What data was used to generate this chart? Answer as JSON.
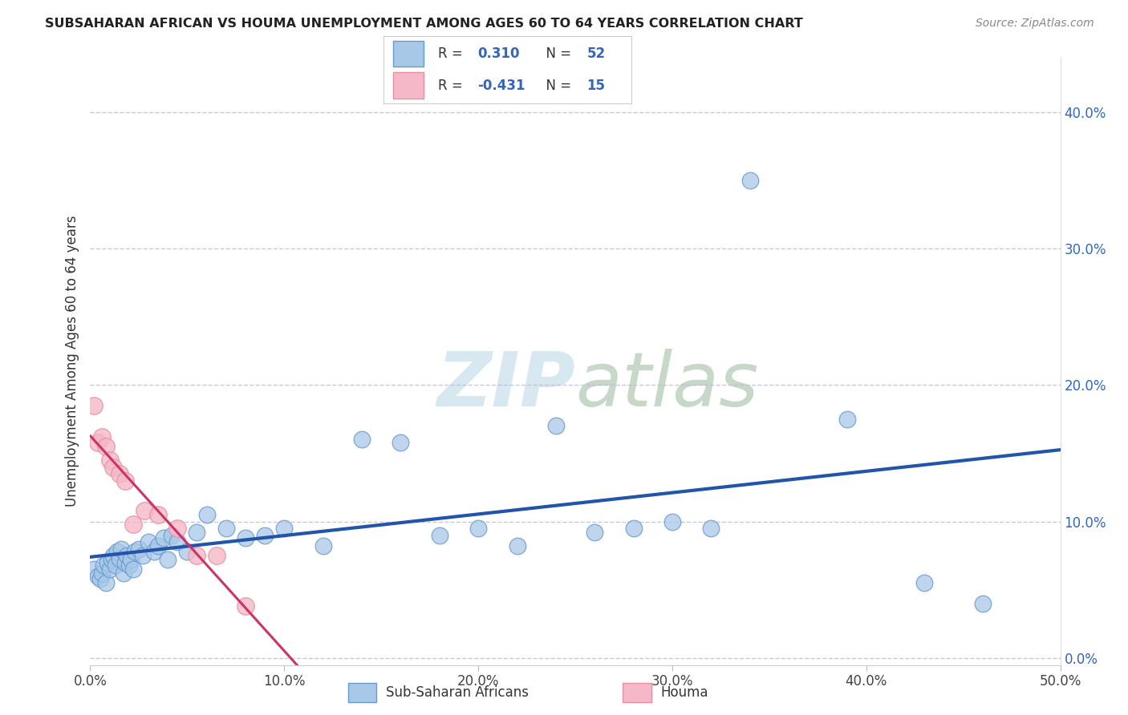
{
  "title": "SUBSAHARAN AFRICAN VS HOUMA UNEMPLOYMENT AMONG AGES 60 TO 64 YEARS CORRELATION CHART",
  "source": "Source: ZipAtlas.com",
  "ylabel": "Unemployment Among Ages 60 to 64 years",
  "legend_label_1": "Sub-Saharan Africans",
  "legend_label_2": "Houma",
  "R1": 0.31,
  "N1": 52,
  "R2": -0.431,
  "N2": 15,
  "blue_marker_color": "#A8C8E8",
  "blue_edge_color": "#6699CC",
  "pink_marker_color": "#F4B8C8",
  "pink_edge_color": "#E890A0",
  "trend_blue": "#2255AA",
  "trend_pink": "#CC3366",
  "watermark_color": "#D8E8F0",
  "xlim": [
    0.0,
    0.5
  ],
  "ylim": [
    -0.005,
    0.44
  ],
  "yticks": [
    0.0,
    0.1,
    0.2,
    0.3,
    0.4
  ],
  "xticks": [
    0.0,
    0.1,
    0.2,
    0.3,
    0.4,
    0.5
  ],
  "blue_x": [
    0.002,
    0.004,
    0.005,
    0.006,
    0.007,
    0.008,
    0.009,
    0.01,
    0.011,
    0.012,
    0.013,
    0.014,
    0.015,
    0.016,
    0.017,
    0.018,
    0.019,
    0.02,
    0.021,
    0.022,
    0.023,
    0.025,
    0.027,
    0.03,
    0.033,
    0.035,
    0.038,
    0.04,
    0.042,
    0.045,
    0.05,
    0.055,
    0.06,
    0.07,
    0.08,
    0.09,
    0.1,
    0.12,
    0.14,
    0.16,
    0.18,
    0.2,
    0.22,
    0.24,
    0.26,
    0.28,
    0.3,
    0.32,
    0.34,
    0.39,
    0.43,
    0.46
  ],
  "blue_y": [
    0.065,
    0.06,
    0.058,
    0.062,
    0.068,
    0.055,
    0.07,
    0.065,
    0.072,
    0.075,
    0.068,
    0.078,
    0.073,
    0.08,
    0.062,
    0.07,
    0.075,
    0.068,
    0.072,
    0.065,
    0.078,
    0.08,
    0.075,
    0.085,
    0.078,
    0.082,
    0.088,
    0.072,
    0.09,
    0.085,
    0.078,
    0.092,
    0.105,
    0.095,
    0.088,
    0.09,
    0.095,
    0.082,
    0.16,
    0.158,
    0.09,
    0.095,
    0.082,
    0.17,
    0.092,
    0.095,
    0.1,
    0.095,
    0.35,
    0.175,
    0.055,
    0.04
  ],
  "pink_x": [
    0.002,
    0.004,
    0.006,
    0.008,
    0.01,
    0.012,
    0.015,
    0.018,
    0.022,
    0.028,
    0.035,
    0.045,
    0.055,
    0.065,
    0.08
  ],
  "pink_y": [
    0.185,
    0.158,
    0.162,
    0.155,
    0.145,
    0.14,
    0.135,
    0.13,
    0.098,
    0.108,
    0.105,
    0.095,
    0.075,
    0.075,
    0.038
  ]
}
